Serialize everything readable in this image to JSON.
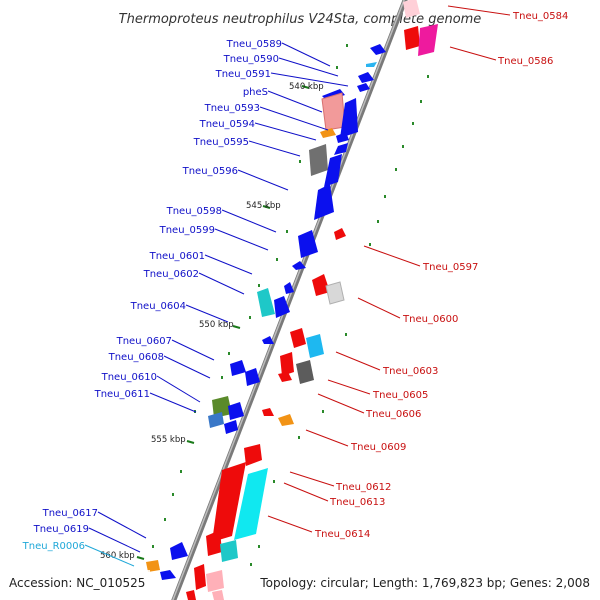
{
  "title": "Thermoproteus neutrophilus V24Sta, complete genome",
  "footer": {
    "accession": "Accession: NC_010525",
    "topology": "Topology: circular; Length: 1,769,823 bp; Genes: 2,008"
  },
  "colors": {
    "backbone": "#888888",
    "forward_label": "#1010c8",
    "reverse_label": "#c81010",
    "rna_label": "#20a8d8",
    "tick": "#1a7a1a"
  },
  "scale_labels": [
    "540 kbp",
    "545 kbp",
    "550 kbp",
    "555 kbp",
    "560 kbp"
  ],
  "left_labels": [
    "Tneu_0589",
    "Tneu_0590",
    "Tneu_0591",
    "pheS",
    "Tneu_0593",
    "Tneu_0594",
    "Tneu_0595",
    "Tneu_0596",
    "Tneu_0598",
    "Tneu_0599",
    "Tneu_0601",
    "Tneu_0602",
    "Tneu_0604",
    "Tneu_0607",
    "Tneu_0608",
    "Tneu_0610",
    "Tneu_0611",
    "Tneu_0617",
    "Tneu_0619",
    "Tneu_R0006"
  ],
  "right_labels": [
    "Tneu_0584",
    "Tneu_0586",
    "Tneu_0597",
    "Tneu_0600",
    "Tneu_0603",
    "Tneu_0605",
    "Tneu_0606",
    "Tneu_0609",
    "Tneu_0612",
    "Tneu_0613",
    "Tneu_0614"
  ]
}
